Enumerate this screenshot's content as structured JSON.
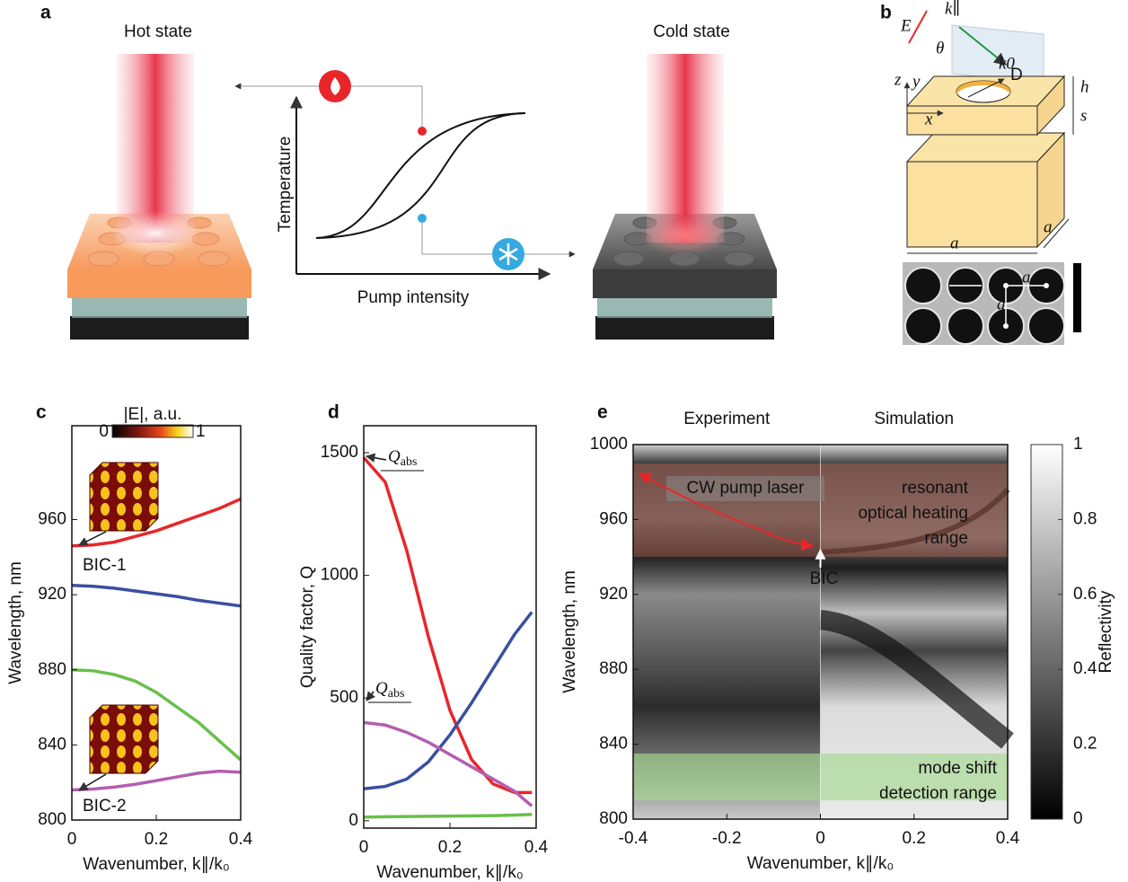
{
  "panel_a": {
    "panel_label": "a",
    "hot": "Hot state",
    "cold": "Cold state",
    "y_axis": "Temperature",
    "x_axis": "Pump intensity"
  },
  "panel_b": {
    "panel_label": "b",
    "E": "E",
    "k_par": "k∥",
    "theta": "θ",
    "k0": "k0",
    "D": "D",
    "h": "h",
    "s": "s",
    "z": "z",
    "y": "y",
    "x": "x",
    "a1": "a",
    "a2": "a",
    "sem_D": "D",
    "sem_a1": "a",
    "sem_a2": "a"
  },
  "chart_data": [
    {
      "type": "line",
      "panel_label": "c",
      "xlabel": "Wavenumber, k∥/k₀",
      "ylabel": "Wavelength, nm",
      "x": [
        0,
        0.05,
        0.1,
        0.15,
        0.2,
        0.25,
        0.3,
        0.35,
        0.4
      ],
      "series": [
        {
          "color": "#e8262a",
          "values": [
            946,
            946.5,
            948,
            951,
            954,
            958,
            962,
            966,
            971
          ]
        },
        {
          "color": "#3a4fa0",
          "values": [
            925,
            924.5,
            923.5,
            922,
            920.5,
            919,
            917,
            915.5,
            914
          ]
        },
        {
          "color": "#6abf4b",
          "values": [
            880,
            879.5,
            877.5,
            874,
            868,
            860,
            852,
            842,
            832
          ]
        },
        {
          "color": "#b35eb0",
          "values": [
            816,
            816.5,
            817.5,
            819,
            821,
            823,
            825,
            826,
            825.5
          ]
        }
      ],
      "xlim": [
        0,
        0.4
      ],
      "xticks": [
        0,
        0.2,
        0.4
      ],
      "ylim": [
        800,
        1010
      ],
      "yticks": [
        800,
        840,
        880,
        920,
        960
      ],
      "annotations": [
        "BIC-1",
        "BIC-2"
      ],
      "colorbar": {
        "label": "|E|, a.u.",
        "lim": [
          0,
          1
        ],
        "ticks": [
          0,
          1
        ]
      }
    },
    {
      "type": "line",
      "panel_label": "d",
      "xlabel": "Wavenumber, k∥/k₀",
      "ylabel": "Quality factor, Q",
      "x": [
        0,
        0.05,
        0.1,
        0.15,
        0.2,
        0.25,
        0.3,
        0.35,
        0.39
      ],
      "series": [
        {
          "color": "#e8262a",
          "values": [
            1480,
            1380,
            1100,
            750,
            450,
            250,
            150,
            115,
            115
          ]
        },
        {
          "color": "#3a4fa0",
          "values": [
            130,
            140,
            170,
            240,
            350,
            480,
            620,
            760,
            850
          ]
        },
        {
          "color": "#b35eb0",
          "values": [
            400,
            390,
            360,
            320,
            270,
            220,
            170,
            120,
            60
          ]
        },
        {
          "color": "#6abf4b",
          "values": [
            15,
            16,
            17,
            18,
            19,
            20,
            21,
            23,
            26
          ]
        }
      ],
      "xlim": [
        0,
        0.4
      ],
      "xticks": [
        0,
        0.2,
        0.4
      ],
      "ylim": [
        -30,
        1610
      ],
      "yticks": [
        0,
        500,
        1000,
        1500
      ],
      "annotations": [
        {
          "text": "Q",
          "sub": "abs"
        },
        {
          "text": "Q",
          "sub": "abs"
        }
      ]
    },
    {
      "type": "heatmap",
      "panel_label": "e",
      "xlabel": "Wavenumber, k∥/k₀",
      "ylabel": "Wavelength, nm",
      "left_title": "Experiment",
      "right_title": "Simulation",
      "xlim": [
        -0.4,
        0.4
      ],
      "xticks": [
        -0.4,
        -0.2,
        0,
        0.2,
        0.4
      ],
      "ylim": [
        800,
        1000
      ],
      "yticks": [
        800,
        840,
        880,
        920,
        960,
        1000
      ],
      "heating_band": [
        940,
        990
      ],
      "detection_band": [
        810,
        835
      ],
      "pump_label": "CW pump laser",
      "bic_label": "BIC",
      "heating_label": [
        "resonant",
        "optical heating",
        "range"
      ],
      "detection_label": [
        "mode shift",
        "detection range"
      ],
      "colorbar": {
        "label": "Reflectivity",
        "lim": [
          0,
          1
        ],
        "ticks": [
          0,
          0.2,
          0.4,
          0.6,
          0.8,
          1
        ]
      }
    }
  ]
}
